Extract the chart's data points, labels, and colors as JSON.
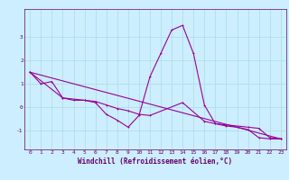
{
  "xlabel": "Windchill (Refroidissement éolien,°C)",
  "ylabel": "",
  "bg_color": "#cceeff",
  "line_color": "#990099",
  "grid_color": "#aadddd",
  "axis_color": "#660066",
  "xlim": [
    -0.5,
    23.5
  ],
  "ylim": [
    -1.8,
    4.2
  ],
  "yticks": [
    -1,
    0,
    1,
    2,
    3
  ],
  "xticks": [
    0,
    1,
    2,
    3,
    4,
    5,
    6,
    7,
    8,
    9,
    10,
    11,
    12,
    13,
    14,
    15,
    16,
    17,
    18,
    19,
    20,
    21,
    22,
    23
  ],
  "line1_x": [
    0,
    1,
    2,
    3,
    4,
    5,
    6,
    7,
    8,
    9,
    10,
    11,
    12,
    13,
    14,
    15,
    16,
    17,
    18,
    19,
    20,
    21,
    22,
    23
  ],
  "line1_y": [
    1.5,
    1.0,
    1.1,
    0.4,
    0.3,
    0.3,
    0.2,
    -0.3,
    -0.55,
    -0.85,
    -0.35,
    1.3,
    2.3,
    3.3,
    3.5,
    2.3,
    0.1,
    -0.7,
    -0.8,
    -0.85,
    -0.95,
    -1.3,
    -1.35,
    -1.35
  ],
  "line2_x": [
    0,
    3,
    5,
    6,
    7,
    8,
    9,
    10,
    11,
    14,
    16,
    17,
    18,
    20,
    21,
    22,
    23
  ],
  "line2_y": [
    1.5,
    0.4,
    0.3,
    0.25,
    0.1,
    -0.05,
    -0.15,
    -0.3,
    -0.35,
    0.2,
    -0.6,
    -0.7,
    -0.75,
    -0.85,
    -0.9,
    -1.3,
    -1.35
  ],
  "line3_x": [
    0,
    23
  ],
  "line3_y": [
    1.5,
    -1.35
  ],
  "tick_fontsize": 4.5,
  "label_fontsize": 5.5
}
